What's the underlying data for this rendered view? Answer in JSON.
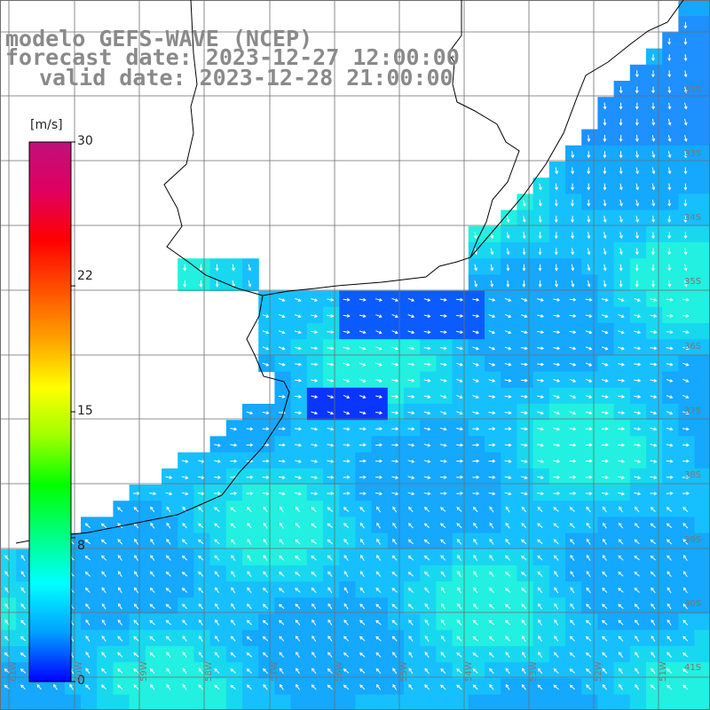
{
  "title": {
    "line1": "modelo GEFS-WAVE (NCEP)",
    "line2": "forecast date: 2023-12-27 12:00:00",
    "line3": "valid date: 2023-12-28 21:00:00"
  },
  "colorbar": {
    "unit": "[m/s]",
    "ticks": [
      "30",
      "22",
      "15",
      "8",
      "0"
    ],
    "tick_values": [
      30,
      22,
      15,
      8,
      0
    ],
    "min": 0,
    "max": 30,
    "colors": [
      "#0000ff",
      "#00a0ff",
      "#00ffff",
      "#00ff80",
      "#00ff00",
      "#a0ff00",
      "#ffff00",
      "#ffa000",
      "#ff5000",
      "#ff0000",
      "#e00060",
      "#c0107a"
    ]
  },
  "lat_labels": [
    "32S",
    "33S",
    "34S",
    "35S",
    "36S",
    "37S",
    "38S",
    "39S",
    "40S",
    "41S"
  ],
  "lon_labels": [
    "61W",
    "60W",
    "59W",
    "58W",
    "57W",
    "56W",
    "55W",
    "54W",
    "53W",
    "52W",
    "51W"
  ],
  "colors": {
    "land": "#ffffff",
    "grid": "#6e6e6e",
    "coast": "#000000",
    "arrow": "#ffffff",
    "title": "#8a8a8a"
  }
}
